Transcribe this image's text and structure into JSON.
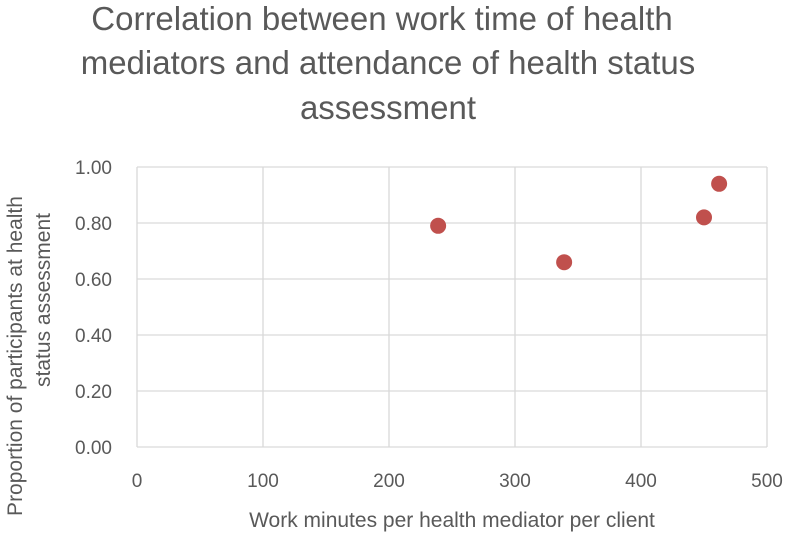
{
  "chart_data": {
    "type": "scatter",
    "title_lines": [
      "Correlation between work time of health",
      "mediators and attendance of health status",
      "assessment"
    ],
    "xlabel": "Work minutes per health mediator per client",
    "ylabel_lines": [
      "Proportion of participants at health",
      "status assessment"
    ],
    "xlim": [
      0,
      500
    ],
    "ylim": [
      0,
      1
    ],
    "x_ticks": [
      0,
      100,
      200,
      300,
      400,
      500
    ],
    "y_ticks": [
      0,
      0.2,
      0.4,
      0.6,
      0.8,
      1.0
    ],
    "x_tick_labels": [
      "0",
      "100",
      "200",
      "300",
      "400",
      "500"
    ],
    "y_tick_labels": [
      "0.00",
      "0.20",
      "0.40",
      "0.60",
      "0.80",
      "1.00"
    ],
    "grid": true,
    "legend": "none",
    "series": [
      {
        "color": "#c0504d",
        "points": [
          {
            "x": 239,
            "y": 0.79
          },
          {
            "x": 339,
            "y": 0.66
          },
          {
            "x": 450,
            "y": 0.82
          },
          {
            "x": 462,
            "y": 0.94
          }
        ]
      }
    ]
  }
}
